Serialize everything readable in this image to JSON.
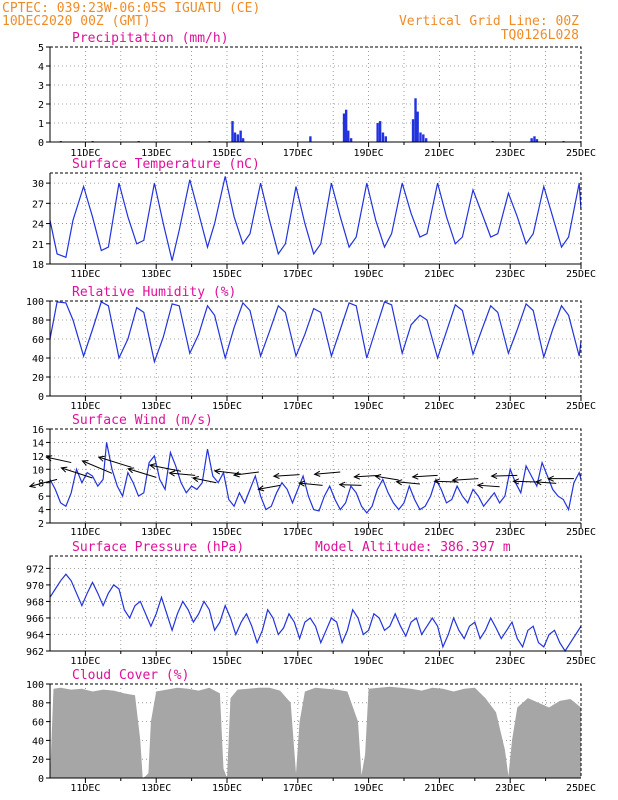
{
  "header": {
    "location": "CPTEC:   039:23W-06:05S   IGUATU (CE)",
    "date": "10DEC2020 00Z (GMT)",
    "grid_note": "Vertical Grid Line: 00Z",
    "model_id": "TQ0126L028",
    "altitude_note": "Model Altitude: 386.397 m"
  },
  "colors": {
    "header": "#f08c28",
    "title": "#e0109a",
    "line": "#2233dd",
    "cloud": "#a6a6a6",
    "arrow": "#000000"
  },
  "date_labels": [
    "11DEC",
    "13DEC",
    "15DEC",
    "17DEC",
    "19DEC",
    "21DEC",
    "23DEC",
    "25DEC"
  ],
  "chart_data": [
    {
      "type": "bar",
      "title": "Precipitation (mm/h)",
      "x_unit": "days since 10DEC2020 00Z",
      "xlim": [
        0,
        15
      ],
      "ylim": [
        0,
        5
      ],
      "yticks": [
        0,
        1,
        2,
        3,
        4,
        5
      ],
      "x": [
        0.3,
        1.2,
        2.5,
        4.5,
        5.15,
        5.22,
        5.3,
        5.38,
        5.45,
        7.35,
        8.3,
        8.36,
        8.42,
        8.5,
        9.25,
        9.32,
        9.4,
        9.48,
        10.25,
        10.32,
        10.38,
        10.46,
        10.54,
        10.62,
        12.5,
        13.6,
        13.68,
        13.75,
        14.5
      ],
      "values": [
        0.05,
        0.05,
        0.05,
        0.05,
        1.1,
        0.5,
        0.4,
        0.6,
        0.2,
        0.3,
        1.5,
        1.7,
        0.6,
        0.2,
        1.0,
        1.1,
        0.5,
        0.3,
        1.2,
        2.3,
        1.6,
        0.5,
        0.4,
        0.2,
        0.05,
        0.2,
        0.3,
        0.15,
        0.05
      ]
    },
    {
      "type": "line",
      "title": "Surface Temperature (nC)",
      "x_unit": "days since 10DEC2020 00Z",
      "xlim": [
        0,
        15
      ],
      "ylim": [
        18,
        31.5
      ],
      "yticks": [
        18,
        21,
        24,
        27,
        30
      ],
      "x": [
        0,
        0.2,
        0.45,
        0.65,
        0.95,
        1.2,
        1.45,
        1.65,
        1.95,
        2.2,
        2.45,
        2.65,
        2.95,
        3.2,
        3.45,
        3.65,
        3.95,
        4.2,
        4.45,
        4.65,
        4.95,
        5.2,
        5.45,
        5.65,
        5.95,
        6.2,
        6.45,
        6.65,
        6.95,
        7.2,
        7.45,
        7.65,
        7.95,
        8.2,
        8.45,
        8.65,
        8.95,
        9.2,
        9.45,
        9.65,
        9.95,
        10.2,
        10.45,
        10.65,
        10.95,
        11.2,
        11.45,
        11.65,
        11.95,
        12.2,
        12.45,
        12.65,
        12.95,
        13.2,
        13.45,
        13.65,
        13.95,
        14.2,
        14.45,
        14.65,
        14.95,
        15
      ],
      "values": [
        24.5,
        19.5,
        19.0,
        24.5,
        29.5,
        25.0,
        20.0,
        20.5,
        30.0,
        25.0,
        21.0,
        21.5,
        30.0,
        24.0,
        18.5,
        23.0,
        30.5,
        25.5,
        20.5,
        24.0,
        31.0,
        25.0,
        21.0,
        22.5,
        30.0,
        24.5,
        19.5,
        21.0,
        29.5,
        24.0,
        19.5,
        21.0,
        30.0,
        25.0,
        20.5,
        22.0,
        30.0,
        24.5,
        20.5,
        22.5,
        30.0,
        25.5,
        22.0,
        22.5,
        30.0,
        25.0,
        21.0,
        22.0,
        29.0,
        25.5,
        22.0,
        22.5,
        28.5,
        25.0,
        21.0,
        22.5,
        29.5,
        25.0,
        20.5,
        22.0,
        30.0,
        26.0
      ]
    },
    {
      "type": "line",
      "title": "Relative Humidity (%)",
      "x_unit": "days since 10DEC2020 00Z",
      "xlim": [
        0,
        15
      ],
      "ylim": [
        0,
        100
      ],
      "yticks": [
        0,
        20,
        40,
        60,
        80,
        100
      ],
      "x": [
        0,
        0.2,
        0.45,
        0.65,
        0.95,
        1.2,
        1.45,
        1.65,
        1.95,
        2.2,
        2.45,
        2.65,
        2.95,
        3.2,
        3.45,
        3.65,
        3.95,
        4.2,
        4.45,
        4.65,
        4.95,
        5.2,
        5.45,
        5.65,
        5.95,
        6.2,
        6.45,
        6.65,
        6.95,
        7.2,
        7.45,
        7.65,
        7.95,
        8.2,
        8.45,
        8.65,
        8.95,
        9.2,
        9.45,
        9.65,
        9.95,
        10.2,
        10.45,
        10.65,
        10.95,
        11.2,
        11.45,
        11.65,
        11.95,
        12.2,
        12.45,
        12.65,
        12.95,
        13.2,
        13.45,
        13.65,
        13.95,
        14.2,
        14.45,
        14.65,
        14.95,
        15
      ],
      "values": [
        60,
        99,
        98,
        80,
        42,
        70,
        99,
        95,
        40,
        60,
        93,
        88,
        36,
        62,
        97,
        95,
        45,
        65,
        95,
        85,
        40,
        72,
        98,
        90,
        42,
        68,
        95,
        88,
        42,
        65,
        92,
        88,
        42,
        70,
        98,
        95,
        40,
        70,
        99,
        96,
        45,
        75,
        85,
        80,
        40,
        68,
        96,
        90,
        44,
        70,
        95,
        88,
        45,
        70,
        97,
        90,
        41,
        70,
        95,
        85,
        42,
        58
      ]
    },
    {
      "type": "line",
      "title": "Surface Wind (m/s)",
      "x_unit": "days since 10DEC2020 00Z",
      "xlim": [
        0,
        15
      ],
      "ylim": [
        2,
        16
      ],
      "yticks": [
        2,
        4,
        6,
        8,
        10,
        12,
        14,
        16
      ],
      "x": [
        0,
        0.15,
        0.3,
        0.45,
        0.6,
        0.75,
        0.9,
        1.05,
        1.2,
        1.35,
        1.5,
        1.6,
        1.75,
        1.9,
        2.05,
        2.2,
        2.35,
        2.5,
        2.65,
        2.8,
        2.95,
        3.1,
        3.25,
        3.4,
        3.55,
        3.7,
        3.85,
        4.0,
        4.15,
        4.3,
        4.45,
        4.6,
        4.75,
        4.9,
        5.05,
        5.2,
        5.35,
        5.5,
        5.65,
        5.8,
        5.95,
        6.1,
        6.25,
        6.4,
        6.55,
        6.7,
        6.85,
        7.0,
        7.15,
        7.3,
        7.45,
        7.6,
        7.75,
        7.9,
        8.05,
        8.2,
        8.35,
        8.5,
        8.65,
        8.8,
        8.95,
        9.1,
        9.25,
        9.4,
        9.55,
        9.7,
        9.85,
        10.0,
        10.15,
        10.3,
        10.45,
        10.6,
        10.75,
        10.9,
        11.05,
        11.2,
        11.35,
        11.5,
        11.65,
        11.8,
        11.95,
        12.1,
        12.25,
        12.4,
        12.55,
        12.7,
        12.85,
        13.0,
        13.15,
        13.3,
        13.45,
        13.6,
        13.75,
        13.9,
        14.05,
        14.2,
        14.35,
        14.5,
        14.65,
        14.8,
        14.95,
        15
      ],
      "values": [
        8.5,
        7.0,
        5.0,
        4.5,
        6.5,
        10.0,
        8.0,
        9.5,
        9.0,
        7.5,
        8.5,
        14.0,
        10.0,
        7.5,
        6.0,
        9.5,
        8.0,
        6.0,
        6.5,
        11.0,
        12.0,
        8.5,
        7.0,
        12.5,
        10.5,
        8.0,
        6.5,
        7.5,
        7.0,
        8.0,
        13.0,
        9.0,
        8.0,
        9.5,
        5.5,
        4.5,
        6.5,
        5.0,
        7.0,
        9.0,
        6.0,
        4.0,
        4.5,
        6.5,
        8.0,
        7.0,
        5.0,
        7.0,
        9.0,
        6.0,
        4.0,
        3.8,
        6.0,
        7.5,
        5.5,
        4.0,
        5.0,
        7.5,
        6.5,
        4.5,
        3.5,
        4.5,
        7.0,
        8.5,
        6.5,
        5.0,
        4.0,
        5.0,
        7.5,
        5.5,
        4.0,
        4.5,
        6.0,
        8.5,
        7.0,
        5.0,
        5.5,
        7.5,
        6.0,
        5.0,
        7.0,
        6.0,
        4.5,
        5.5,
        6.5,
        5.0,
        6.0,
        10.0,
        8.0,
        6.5,
        10.5,
        9.0,
        7.5,
        11.0,
        9.0,
        7.0,
        6.0,
        5.5,
        4.0,
        8.0,
        9.5,
        8.5
      ]
    },
    {
      "type": "line",
      "title": "Surface Pressure (hPa)",
      "x_unit": "days since 10DEC2020 00Z",
      "xlim": [
        0,
        15
      ],
      "ylim": [
        962,
        973.5
      ],
      "yticks": [
        962,
        964,
        966,
        968,
        970,
        972
      ],
      "x": [
        0,
        0.15,
        0.3,
        0.45,
        0.6,
        0.75,
        0.9,
        1.05,
        1.2,
        1.35,
        1.5,
        1.65,
        1.8,
        1.95,
        2.1,
        2.25,
        2.4,
        2.55,
        2.7,
        2.85,
        3.0,
        3.15,
        3.3,
        3.45,
        3.6,
        3.75,
        3.9,
        4.05,
        4.2,
        4.35,
        4.5,
        4.65,
        4.8,
        4.95,
        5.1,
        5.25,
        5.4,
        5.55,
        5.7,
        5.85,
        6.0,
        6.15,
        6.3,
        6.45,
        6.6,
        6.75,
        6.9,
        7.05,
        7.2,
        7.35,
        7.5,
        7.65,
        7.8,
        7.95,
        8.1,
        8.25,
        8.4,
        8.55,
        8.7,
        8.85,
        9.0,
        9.15,
        9.3,
        9.45,
        9.6,
        9.75,
        9.9,
        10.05,
        10.2,
        10.35,
        10.5,
        10.65,
        10.8,
        10.95,
        11.1,
        11.25,
        11.4,
        11.55,
        11.7,
        11.85,
        12.0,
        12.15,
        12.3,
        12.45,
        12.6,
        12.75,
        12.9,
        13.05,
        13.2,
        13.35,
        13.5,
        13.65,
        13.8,
        13.95,
        14.1,
        14.25,
        14.4,
        14.55,
        14.7,
        14.85,
        15
      ],
      "values": [
        968.5,
        969.5,
        970.5,
        971.3,
        970.5,
        969.0,
        967.5,
        969.0,
        970.3,
        969.0,
        967.5,
        969.0,
        970.0,
        969.5,
        967.0,
        966.0,
        967.5,
        968.0,
        966.5,
        965.0,
        966.5,
        968.5,
        966.5,
        964.5,
        966.5,
        968.0,
        967.0,
        965.5,
        966.5,
        968.0,
        967.0,
        964.5,
        965.5,
        967.5,
        966.0,
        964.0,
        965.5,
        966.5,
        965.0,
        963.0,
        964.5,
        967.0,
        966.0,
        964.0,
        964.8,
        966.5,
        965.5,
        963.5,
        965.5,
        966.0,
        965.0,
        963.0,
        964.5,
        966.0,
        965.5,
        963.0,
        964.5,
        967.0,
        966.0,
        964.0,
        964.5,
        966.5,
        966.0,
        964.5,
        965.0,
        966.5,
        965.0,
        963.8,
        965.5,
        966.0,
        964.0,
        965.0,
        966.0,
        965.0,
        962.5,
        964.0,
        966.0,
        964.5,
        963.5,
        965.0,
        965.5,
        963.5,
        964.5,
        966.0,
        964.8,
        963.5,
        964.5,
        965.5,
        963.5,
        962.5,
        964.5,
        965.0,
        963.0,
        962.5,
        964.0,
        964.5,
        963.0,
        962.0,
        963.0,
        964.0,
        965.0
      ]
    },
    {
      "type": "area",
      "title": "Cloud Cover (%)",
      "x_unit": "days since 10DEC2020 00Z",
      "xlim": [
        0,
        15
      ],
      "ylim": [
        0,
        100
      ],
      "yticks": [
        0,
        20,
        40,
        60,
        80,
        100
      ],
      "x": [
        0,
        0.1,
        0.3,
        0.6,
        0.9,
        1.2,
        1.5,
        1.8,
        2.1,
        2.4,
        2.55,
        2.62,
        2.7,
        2.78,
        2.85,
        3.0,
        3.3,
        3.6,
        3.9,
        4.2,
        4.5,
        4.8,
        4.9,
        5.0,
        5.1,
        5.3,
        5.6,
        5.9,
        6.2,
        6.5,
        6.8,
        6.95,
        7.05,
        7.2,
        7.5,
        7.8,
        8.1,
        8.4,
        8.7,
        8.8,
        8.9,
        9.0,
        9.3,
        9.6,
        9.9,
        10.2,
        10.5,
        10.8,
        11.1,
        11.4,
        11.7,
        12.0,
        12.3,
        12.6,
        12.85,
        12.95,
        13.05,
        13.2,
        13.5,
        13.8,
        14.1,
        14.4,
        14.7,
        15
      ],
      "values": [
        0,
        95,
        96,
        94,
        95,
        92,
        94,
        93,
        90,
        88,
        40,
        0,
        2,
        5,
        60,
        92,
        94,
        96,
        95,
        93,
        96,
        90,
        10,
        0,
        85,
        94,
        95,
        96,
        96,
        93,
        80,
        5,
        60,
        92,
        96,
        95,
        94,
        92,
        60,
        3,
        25,
        95,
        96,
        97,
        96,
        95,
        93,
        96,
        95,
        92,
        95,
        96,
        85,
        70,
        30,
        2,
        40,
        75,
        85,
        80,
        75,
        82,
        84,
        75
      ]
    }
  ],
  "wind_vectors": {
    "title": "Surface Wind (m/s)",
    "x": [
      0.2,
      0.6,
      1.2,
      1.75,
      2.3,
      3.0,
      3.7,
      4.1,
      4.7,
      5.4,
      5.9,
      6.5,
      7.05,
      7.7,
      8.2,
      8.8,
      9.3,
      9.85,
      10.45,
      10.95,
      11.5,
      12.1,
      12.7,
      13.2,
      13.75,
      14.3,
      14.8
    ],
    "values": [
      8.5,
      11.0,
      8.7,
      9.4,
      10.3,
      8.8,
      9.7,
      9.1,
      8.0,
      9.3,
      9.6,
      7.6,
      9.2,
      7.6,
      9.6,
      7.6,
      9.1,
      8.4,
      7.8,
      9.1,
      8.1,
      8.6,
      7.4,
      9.1,
      8.1,
      7.9,
      8.6
    ],
    "u": [
      -3.5,
      -3.2,
      -4.0,
      -3.8,
      -4.2,
      -3.6,
      -4.0,
      -3.3,
      -3.0,
      -3.4,
      -3.2,
      -2.8,
      -3.3,
      -3.0,
      -3.3,
      -2.8,
      -3.2,
      -3.0,
      -3.0,
      -3.2,
      -2.9,
      -3.3,
      -2.8,
      -3.3,
      -3.0,
      -2.6,
      -3.3
    ],
    "v": [
      -0.9,
      0.7,
      1.3,
      1.6,
      1.3,
      1.1,
      0.8,
      0.3,
      0.6,
      0.4,
      -0.4,
      -0.5,
      -0.2,
      0.3,
      -0.3,
      0.1,
      -0.2,
      0.5,
      0.3,
      -0.2,
      0.1,
      -0.2,
      0.2,
      -0.1,
      0.1,
      0.2,
      0.0
    ]
  }
}
